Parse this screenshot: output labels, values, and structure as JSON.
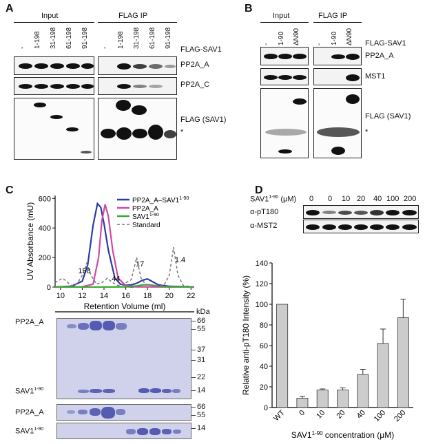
{
  "panels": {
    "A": "A",
    "B": "B",
    "C": "C",
    "D": "D"
  },
  "panelA": {
    "input_header": "Input",
    "ip_header": "FLAG IP",
    "lanes": [
      "-",
      "1-198",
      "31-198",
      "61-198",
      "91-198"
    ],
    "construct_label": "FLAG-SAV1",
    "rows": [
      "PP2A_A",
      "PP2A_C",
      "FLAG (SAV1)"
    ],
    "star": "*"
  },
  "panelB": {
    "input_header": "Input",
    "ip_header": "FLAG IP",
    "lanes": [
      "-",
      "1-90",
      "ΔN90"
    ],
    "construct_label": "FLAG-SAV1",
    "rows": [
      "PP2A_A",
      "MST1",
      "FLAG (SAV1)"
    ],
    "star": "*"
  },
  "panelC": {
    "gel_labels": {
      "pp2a_a": "PP2A_A",
      "sav1": "SAV1",
      "sav1_sup": "1-90"
    },
    "kda": "kDa",
    "markers_main": [
      "66",
      "55",
      "37",
      "31",
      "22",
      "14"
    ],
    "markers_pp2a": [
      "66",
      "55"
    ],
    "markers_sav1": [
      "14"
    ]
  },
  "chart_data": [
    {
      "type": "line",
      "ylabel": "UV Absorbance (mU)",
      "xlabel": "Retention Volume (ml)",
      "xlim": [
        9.5,
        22.3
      ],
      "ylim": [
        0,
        620
      ],
      "xticks": [
        10,
        12,
        14,
        16,
        18,
        20,
        22
      ],
      "yticks": [
        0,
        200,
        400,
        600
      ],
      "legend_position": "top-right",
      "series": [
        {
          "name": "PP2A_A–SAV1",
          "name_sup": "1-90",
          "color": "#2b3aa8",
          "style": "solid",
          "x": [
            9.5,
            11,
            12,
            12.5,
            13,
            13.4,
            13.7,
            14,
            14.4,
            15,
            15.5,
            16,
            16.5,
            17,
            17.5,
            18,
            18.5,
            19,
            20,
            22.3
          ],
          "y": [
            0,
            5,
            40,
            150,
            420,
            565,
            540,
            430,
            250,
            60,
            20,
            12,
            15,
            25,
            45,
            55,
            35,
            15,
            5,
            0
          ]
        },
        {
          "name": "PP2A_A",
          "color": "#d04aa0",
          "style": "solid",
          "x": [
            9.5,
            12,
            13,
            13.5,
            13.8,
            14.1,
            14.4,
            14.8,
            15.3,
            16,
            17,
            22.3
          ],
          "y": [
            0,
            2,
            20,
            200,
            450,
            560,
            480,
            250,
            60,
            10,
            2,
            0
          ]
        },
        {
          "name": "SAV1",
          "name_sup": "1-90",
          "color": "#3aa832",
          "style": "solid",
          "x": [
            9.5,
            14,
            16,
            17,
            17.5,
            18,
            18.5,
            19,
            20,
            22.3
          ],
          "y": [
            0,
            0,
            2,
            8,
            14,
            16,
            12,
            6,
            2,
            0
          ]
        },
        {
          "name": "Standard",
          "color": "#777777",
          "style": "dashed",
          "x": [
            9.5,
            10.2,
            11,
            11.5,
            12,
            12.4,
            12.8,
            13.3,
            13.8,
            14.3,
            14.8,
            15.3,
            15.8,
            16.5,
            17,
            17.4,
            17.8,
            18.5,
            19.5,
            20,
            20.4,
            20.8,
            21.3,
            22.3
          ],
          "y": [
            30,
            60,
            10,
            20,
            80,
            160,
            80,
            20,
            30,
            60,
            30,
            10,
            20,
            50,
            200,
            60,
            20,
            10,
            10,
            80,
            270,
            80,
            10,
            0
          ]
        }
      ],
      "annotations": [
        "158",
        "44",
        "17",
        "1.4"
      ]
    },
    {
      "type": "bar",
      "ylabel": "Relative anti-pT180 Intensity (%)",
      "xlabel": "SAV1 concentration (μM)",
      "xlabel_parts": [
        "SAV1",
        "1-90",
        " concentration (μM)"
      ],
      "categories": [
        "WT",
        "0",
        "10",
        "20",
        "40",
        "100",
        "200"
      ],
      "values": [
        100,
        9,
        17,
        17,
        32,
        62,
        87
      ],
      "errors": [
        0,
        2,
        1,
        2,
        5,
        14,
        18
      ],
      "ylim": [
        0,
        140
      ],
      "yticks": [
        0,
        20,
        40,
        60,
        80,
        100,
        120,
        140
      ],
      "color": "#cccccc"
    }
  ],
  "panelD_blot": {
    "conc_label": "SAV1",
    "conc_sup": "1-90",
    "conc_unit": " (μM)",
    "concs": [
      "0",
      "0",
      "10",
      "20",
      "40",
      "100",
      "200"
    ],
    "rows": [
      "α-pT180",
      "α-MST2"
    ]
  }
}
